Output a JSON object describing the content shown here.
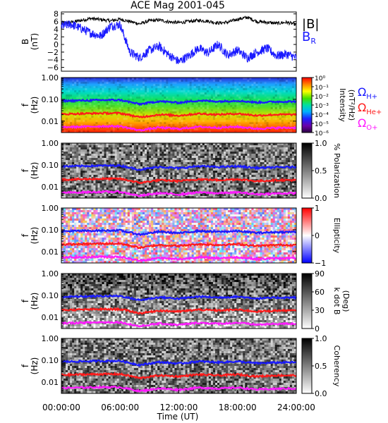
{
  "title": "ACE Mag 2001-045",
  "x_axis": {
    "label": "Time (UT)",
    "ticks": [
      "00:00:00",
      "06:00:00",
      "12:00:00",
      "18:00:00",
      "24:00:00"
    ],
    "tick_hours": [
      0,
      6,
      12,
      18,
      24
    ]
  },
  "colors": {
    "B_total": "#000000",
    "B_R": "#1a1aff",
    "omega_H": "#1a1aff",
    "omega_He": "#ff1a1a",
    "omega_O": "#ff1aff"
  },
  "legend_top": {
    "total": "|B|",
    "radial": "B",
    "radial_sub": "R"
  },
  "legend_spectrum": [
    {
      "symbol": "Ω",
      "sub": "H+",
      "color": "#1a1aff"
    },
    {
      "symbol": "Ω",
      "sub": "He+",
      "color": "#ff1a1a"
    },
    {
      "symbol": "Ω",
      "sub": "O+",
      "color": "#ff1aff"
    }
  ],
  "panels": {
    "mag": {
      "ylabel_1": "B",
      "ylabel_2": "(nT)",
      "yticks": [
        "8",
        "6",
        "4",
        "2",
        "0",
        "−2",
        "−4",
        "−6"
      ],
      "ytick_values": [
        8,
        6,
        4,
        2,
        0,
        -2,
        -4,
        -6
      ]
    },
    "intensity": {
      "ylabel_1": "f",
      "ylabel_2": "(Hz)",
      "yticks": [
        "1.00",
        "0.10",
        "0.01"
      ],
      "cbar_label_1": "Intensity",
      "cbar_label_2": "(nT²/Hz)",
      "cbar_ticks": [
        "10⁰",
        "10⁻¹",
        "10⁻²",
        "10⁻³",
        "10⁻⁴",
        "10⁻⁵",
        "10⁻⁶"
      ]
    },
    "polarization": {
      "ylabel_1": "f",
      "ylabel_2": "(Hz)",
      "yticks": [
        "1.00",
        "0.10",
        "0.01"
      ],
      "cbar_label_1": "% Polarization",
      "cbar_ticks": [
        "1.0",
        "0.5",
        "0.0"
      ]
    },
    "ellipticity": {
      "ylabel_1": "f",
      "ylabel_2": "(Hz)",
      "yticks": [
        "1.00",
        "0.10",
        "0.01"
      ],
      "cbar_label_1": "Ellipticity",
      "cbar_ticks": [
        "1",
        "0",
        "−1"
      ]
    },
    "kdotb": {
      "ylabel_1": "f",
      "ylabel_2": "(Hz)",
      "yticks": [
        "1.00",
        "0.10",
        "0.01"
      ],
      "cbar_label_1": "k dot B",
      "cbar_label_2": "(Deg)",
      "cbar_ticks": [
        "90",
        "60",
        "30",
        "0"
      ]
    },
    "coherency": {
      "ylabel_1": "f",
      "ylabel_2": "(Hz)",
      "yticks": [
        "1.00",
        "0.10",
        "0.01"
      ],
      "cbar_label_1": "Coherency",
      "cbar_ticks": [
        "1.0",
        "0.5",
        "0.0"
      ]
    }
  },
  "chart_data": [
    {
      "type": "line",
      "xlabel": "Time (UT)",
      "ylabel": "B (nT)",
      "xlim": [
        0,
        24
      ],
      "ylim": [
        -7,
        8.5
      ],
      "series": [
        {
          "name": "|B|",
          "color": "#000000",
          "x": [
            0,
            1,
            2,
            3,
            4,
            5,
            6,
            7,
            8,
            9,
            10,
            11,
            12,
            13,
            14,
            15,
            16,
            17,
            18,
            19,
            20,
            21,
            22,
            23,
            24
          ],
          "values": [
            5.6,
            5.8,
            6.3,
            6.8,
            6.5,
            6.2,
            6.6,
            6.0,
            5.4,
            6.2,
            6.4,
            5.9,
            5.7,
            6.0,
            6.3,
            6.1,
            5.6,
            5.8,
            6.6,
            7.1,
            6.0,
            5.8,
            5.5,
            5.8,
            5.2
          ]
        },
        {
          "name": "B",
          "color": "#1a1aff",
          "x": [
            0,
            1,
            2,
            3,
            4,
            5,
            6,
            7,
            8,
            9,
            10,
            11,
            12,
            13,
            14,
            15,
            16,
            17,
            18,
            19,
            20,
            21,
            22,
            23,
            24
          ],
          "values": [
            4.8,
            5.3,
            4.2,
            3.0,
            2.2,
            4.8,
            5.2,
            -2.0,
            -3.5,
            -1.5,
            -0.5,
            -2.8,
            -4.5,
            -3.0,
            -1.0,
            -2.2,
            0.0,
            -2.8,
            -1.5,
            -3.5,
            -2.0,
            -1.0,
            -3.0,
            -2.5,
            -3.5
          ]
        }
      ]
    },
    {
      "type": "line",
      "xlabel": "Time (UT)",
      "ylabel": "f (Hz)",
      "xlim": [
        0,
        24
      ],
      "ylim": [
        0.003,
        1.0
      ],
      "yscale": "log",
      "series": [
        {
          "name": "ΩH+",
          "color": "#1a1aff",
          "x": [
            0,
            2,
            4,
            6,
            7,
            8,
            10,
            12,
            14,
            16,
            18,
            20,
            22,
            24
          ],
          "values": [
            0.085,
            0.088,
            0.092,
            0.093,
            0.075,
            0.06,
            0.082,
            0.07,
            0.088,
            0.08,
            0.087,
            0.072,
            0.078,
            0.08
          ]
        },
        {
          "name": "ΩHe+",
          "color": "#ff1a1a",
          "x": [
            0,
            2,
            4,
            6,
            7,
            8,
            10,
            12,
            14,
            16,
            18,
            20,
            22,
            24
          ],
          "values": [
            0.021,
            0.022,
            0.023,
            0.023,
            0.019,
            0.015,
            0.02,
            0.018,
            0.022,
            0.02,
            0.022,
            0.018,
            0.02,
            0.02
          ]
        },
        {
          "name": "ΩO+",
          "color": "#ff1aff",
          "x": [
            0,
            2,
            4,
            6,
            7,
            8,
            10,
            12,
            14,
            16,
            18,
            20,
            22,
            24
          ],
          "values": [
            0.0053,
            0.0055,
            0.0058,
            0.0058,
            0.0047,
            0.0038,
            0.0051,
            0.0044,
            0.0055,
            0.005,
            0.0055,
            0.0045,
            0.0049,
            0.005
          ]
        }
      ]
    }
  ]
}
